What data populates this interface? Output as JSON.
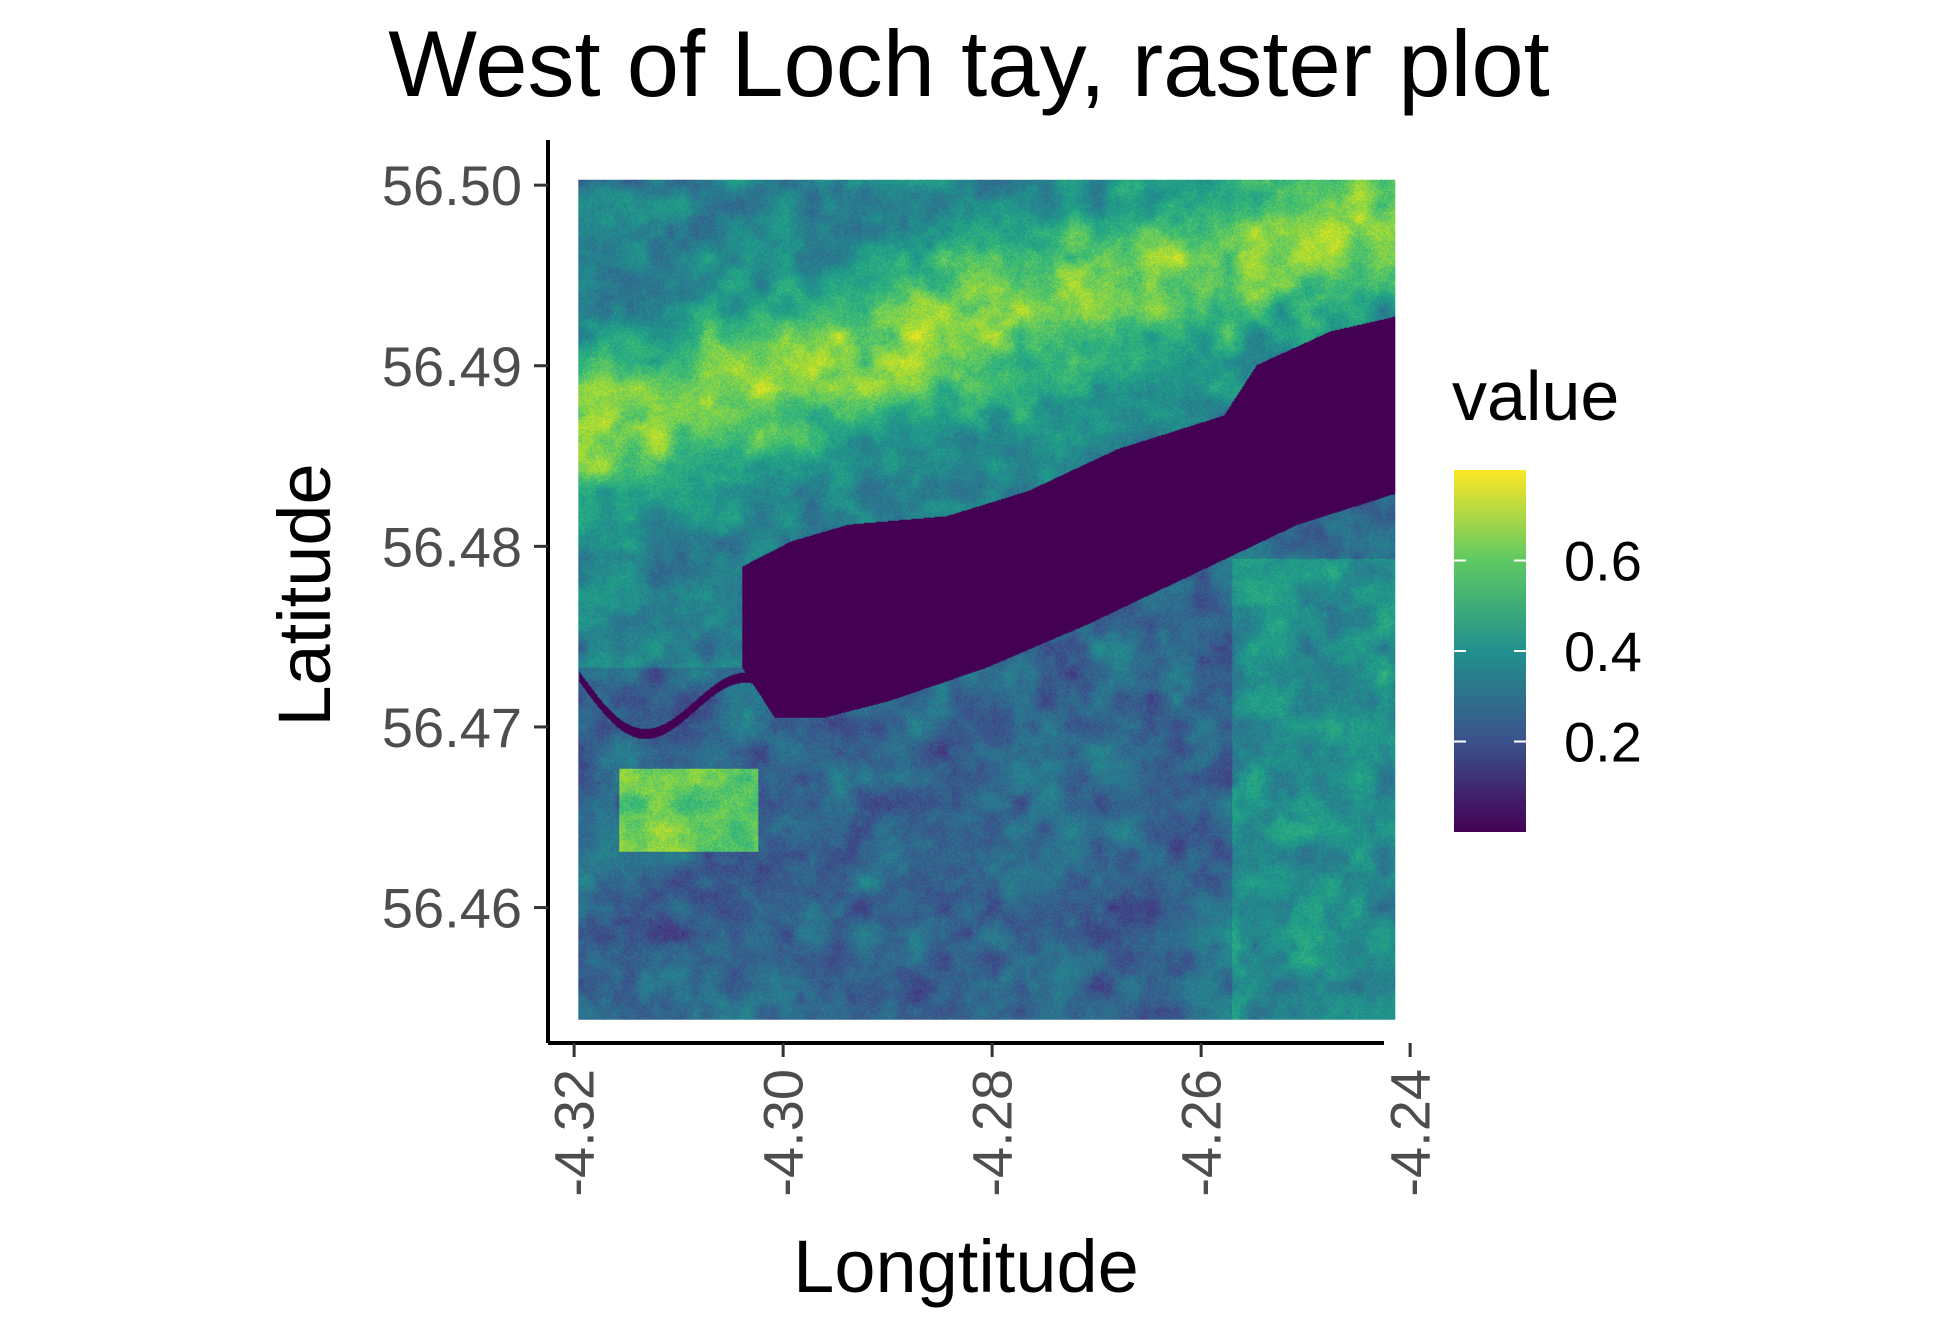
{
  "chart_data": {
    "type": "heatmap",
    "title": "West of Loch tay, raster plot",
    "xlabel": "Longtitude",
    "ylabel": "Latitude",
    "xlim": [
      -4.3225,
      -4.2425
    ],
    "ylim": [
      56.4525,
      56.5025
    ],
    "raster_extent": {
      "x": [
        -4.3196,
        -4.2414
      ],
      "y": [
        56.4538,
        56.5003
      ]
    },
    "x_ticks": [
      {
        "value": -4.32,
        "label": "-4.32"
      },
      {
        "value": -4.3,
        "label": "-4.30"
      },
      {
        "value": -4.28,
        "label": "-4.28"
      },
      {
        "value": -4.26,
        "label": "-4.26"
      },
      {
        "value": -4.24,
        "label": "-4.24"
      }
    ],
    "y_ticks": [
      {
        "value": 56.5,
        "label": "56.50"
      },
      {
        "value": 56.49,
        "label": "56.49"
      },
      {
        "value": 56.48,
        "label": "56.48"
      },
      {
        "value": 56.47,
        "label": "56.47"
      },
      {
        "value": 56.46,
        "label": "56.46"
      }
    ],
    "grid": false,
    "legend": {
      "title": "value",
      "position": "right",
      "colormap": "viridis",
      "range": [
        0.0,
        0.8
      ],
      "ticks": [
        {
          "value": 0.2,
          "label": "0.2"
        },
        {
          "value": 0.4,
          "label": "0.4"
        },
        {
          "value": 0.6,
          "label": "0.6"
        }
      ]
    },
    "colors": {
      "low": "#440154",
      "mid_low": "#3b528b",
      "mid": "#21908d",
      "mid_high": "#5dc962",
      "high": "#fde725"
    }
  }
}
